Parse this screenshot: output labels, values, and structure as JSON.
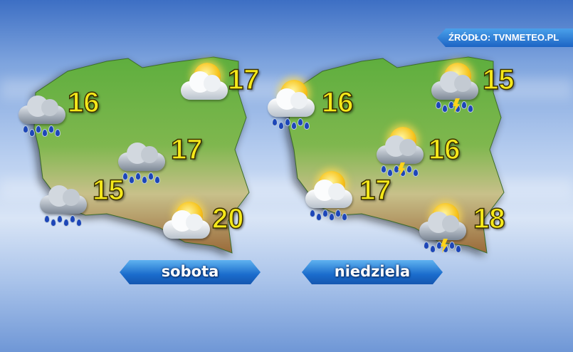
{
  "source_label": "ŹRÓDŁO: TVNMETEO.PL",
  "maps": [
    {
      "day": "sobota",
      "cities": [
        {
          "temp": "16",
          "icon": "cloud-rain-icon"
        },
        {
          "temp": "17",
          "icon": "sun-cloud-icon"
        },
        {
          "temp": "17",
          "icon": "cloud-rain-icon"
        },
        {
          "temp": "15",
          "icon": "cloud-rain-icon"
        },
        {
          "temp": "20",
          "icon": "sun-cloud-icon"
        }
      ]
    },
    {
      "day": "niedziela",
      "cities": [
        {
          "temp": "16",
          "icon": "sun-cloud-rain-icon"
        },
        {
          "temp": "15",
          "icon": "sun-storm-icon"
        },
        {
          "temp": "16",
          "icon": "sun-storm-icon"
        },
        {
          "temp": "17",
          "icon": "sun-cloud-rain-icon"
        },
        {
          "temp": "18",
          "icon": "sun-storm-icon"
        }
      ]
    }
  ],
  "colors": {
    "temperature": "#f5e81a",
    "label_bg": "#1a6ccc",
    "land_low": "#4fa83a",
    "land_high": "#c9b27a"
  }
}
